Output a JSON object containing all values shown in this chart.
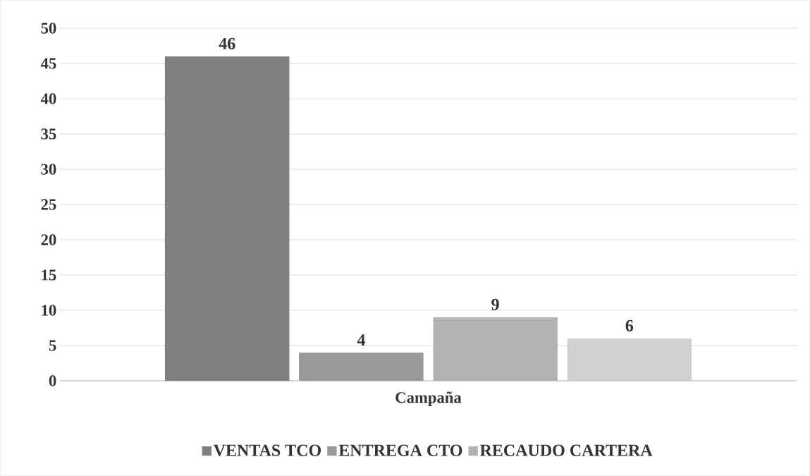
{
  "chart_data": {
    "type": "bar",
    "categories": [
      "Campaña"
    ],
    "series": [
      {
        "name": "VENTAS TCO",
        "color": "#7f7f7f",
        "values": [
          46
        ]
      },
      {
        "name": "ENTREGA CTO",
        "color": "#999999",
        "values": [
          4
        ]
      },
      {
        "name": "RECAUDO CARTERA",
        "color": "#b2b2b2",
        "values": [
          9
        ]
      },
      {
        "color": "#d0d0d0",
        "values": [
          6
        ]
      }
    ],
    "ylim": [
      0,
      50
    ],
    "yticks": [
      0,
      5,
      10,
      15,
      20,
      25,
      30,
      35,
      40,
      45,
      50
    ],
    "grid": "y",
    "legend": "bottom",
    "data_labels": true
  }
}
